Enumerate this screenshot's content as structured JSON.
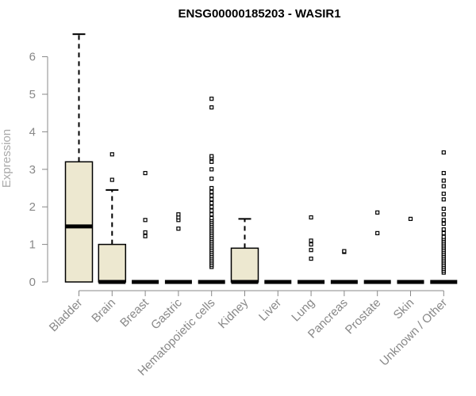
{
  "chart_data": {
    "type": "boxplot",
    "title": "ENSG00000185203 - WASIR1",
    "ylabel": "Expression",
    "xlabel": "",
    "ylim": [
      0,
      6.6
    ],
    "yticks": [
      "0",
      "1",
      "2",
      "3",
      "4",
      "5",
      "6"
    ],
    "categories": [
      "Bladder",
      "Brain",
      "Breast",
      "Gastric",
      "Hematopoietic cells",
      "Kidney",
      "Liver",
      "Lung",
      "Pancreas",
      "Prostate",
      "Skin",
      "Unknown / Other"
    ],
    "boxes": [
      {
        "q1": 0,
        "median": 1.48,
        "q3": 3.2,
        "whisker_low": 0,
        "whisker_high": 6.6,
        "outliers": []
      },
      {
        "q1": 0,
        "median": 0,
        "q3": 1.0,
        "whisker_low": 0,
        "whisker_high": 2.45,
        "outliers": [
          2.72,
          3.4
        ]
      },
      {
        "q1": 0,
        "median": 0,
        "q3": 0,
        "whisker_low": 0,
        "whisker_high": 0,
        "outliers": [
          1.22,
          1.32,
          1.65,
          2.9
        ]
      },
      {
        "q1": 0,
        "median": 0,
        "q3": 0,
        "whisker_low": 0,
        "whisker_high": 0,
        "outliers": [
          1.42,
          1.65,
          1.72,
          1.8
        ]
      },
      {
        "q1": 0,
        "median": 0,
        "q3": 0,
        "whisker_low": 0,
        "whisker_high": 0,
        "outliers": [
          0.4,
          0.45,
          0.5,
          0.55,
          0.6,
          0.65,
          0.7,
          0.75,
          0.8,
          0.85,
          0.9,
          0.95,
          1.0,
          1.05,
          1.1,
          1.15,
          1.2,
          1.25,
          1.3,
          1.35,
          1.4,
          1.45,
          1.5,
          1.55,
          1.6,
          1.65,
          1.7,
          1.8,
          1.9,
          2.0,
          2.1,
          2.2,
          2.3,
          2.4,
          2.5,
          2.75,
          3.0,
          3.2,
          3.3,
          3.35,
          4.65,
          4.88
        ]
      },
      {
        "q1": 0,
        "median": 0,
        "q3": 0.9,
        "whisker_low": 0,
        "whisker_high": 1.68,
        "outliers": []
      },
      {
        "q1": 0,
        "median": 0,
        "q3": 0,
        "whisker_low": 0,
        "whisker_high": 0,
        "outliers": []
      },
      {
        "q1": 0,
        "median": 0,
        "q3": 0,
        "whisker_low": 0,
        "whisker_high": 0,
        "outliers": [
          0.62,
          0.85,
          1.0,
          1.1,
          1.72
        ]
      },
      {
        "q1": 0,
        "median": 0,
        "q3": 0,
        "whisker_low": 0,
        "whisker_high": 0,
        "outliers": [
          0.8,
          0.82
        ]
      },
      {
        "q1": 0,
        "median": 0,
        "q3": 0,
        "whisker_low": 0,
        "whisker_high": 0,
        "outliers": [
          1.3,
          1.85
        ]
      },
      {
        "q1": 0,
        "median": 0,
        "q3": 0,
        "whisker_low": 0,
        "whisker_high": 0,
        "outliers": [
          1.68
        ]
      },
      {
        "q1": 0,
        "median": 0,
        "q3": 0,
        "whisker_low": 0,
        "whisker_high": 0,
        "outliers": [
          0.25,
          0.3,
          0.35,
          0.4,
          0.45,
          0.5,
          0.55,
          0.6,
          0.65,
          0.7,
          0.75,
          0.8,
          0.85,
          0.9,
          0.95,
          1.0,
          1.05,
          1.1,
          1.15,
          1.2,
          1.3,
          1.4,
          1.55,
          1.65,
          1.8,
          1.95,
          2.2,
          2.35,
          2.55,
          2.7,
          2.9,
          3.45
        ]
      }
    ],
    "box_fill": "#ede8d0",
    "box_stroke": "#000000",
    "grid": false,
    "legend": "none"
  }
}
